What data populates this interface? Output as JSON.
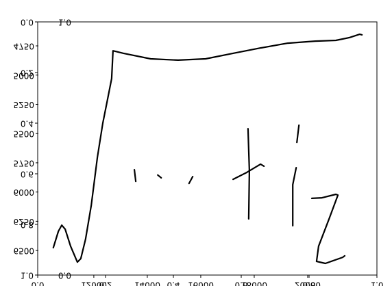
{
  "chart_data": [
    {
      "type": "line",
      "xlim": [
        0,
        1
      ],
      "xticks": [
        {
          "value": 0,
          "label": "0.0"
        },
        {
          "value": 0.2,
          "label": "0.2"
        },
        {
          "value": 0.4,
          "label": "0.4"
        },
        {
          "value": 0.6,
          "label": "0.6"
        },
        {
          "value": 0.8,
          "label": "0.8"
        },
        {
          "value": 1,
          "label": "1.0"
        }
      ],
      "ylim": [
        0,
        1
      ],
      "yticks": [
        {
          "value": 0,
          "label": "0.0"
        },
        {
          "value": 0.2,
          "label": "0.2"
        },
        {
          "value": 0.4,
          "label": "0.4"
        },
        {
          "value": 0.6,
          "label": "0.6"
        },
        {
          "value": 0.8,
          "label": "0.8"
        },
        {
          "value": 1,
          "label": "1.0"
        }
      ],
      "series": [
        {
          "color": "#000000",
          "x": [
            0.046,
            0.061,
            0.071,
            0.081,
            0.097,
            0.117,
            0.127,
            0.141,
            0.158,
            0.176,
            0.192,
            0.206,
            0.218,
            0.222,
            0.253,
            0.333,
            0.414,
            0.495,
            0.576,
            0.657,
            0.737,
            0.818,
            0.879,
            0.919,
            0.949,
            0.956,
            null,
            0.285,
            0.289,
            null,
            0.354,
            0.364,
            null,
            0.446,
            0.457,
            null,
            0.576,
            0.616,
            0.657,
            0.667,
            null,
            0.62,
            0.624,
            0.622,
            null,
            0.77,
            0.764,
            null,
            0.762,
            0.752,
            0.752,
            null,
            0.808,
            0.838,
            0.879,
            0.885,
            0.859,
            0.828,
            0.822,
            0.848,
            0.899,
            0.905
          ],
          "values": [
            0.892,
            0.827,
            0.803,
            0.819,
            0.886,
            0.949,
            0.935,
            0.859,
            0.724,
            0.535,
            0.4,
            0.305,
            0.224,
            0.114,
            0.124,
            0.146,
            0.151,
            0.146,
            0.124,
            0.103,
            0.084,
            0.076,
            0.073,
            0.062,
            0.049,
            0.051,
            null,
            0.584,
            0.63,
            null,
            0.605,
            0.616,
            null,
            0.638,
            0.611,
            null,
            0.622,
            0.595,
            0.562,
            0.57,
            null,
            0.422,
            0.589,
            0.778,
            null,
            0.408,
            0.476,
            null,
            0.576,
            0.643,
            0.805,
            null,
            0.697,
            0.695,
            0.681,
            0.684,
            0.778,
            0.886,
            0.946,
            0.954,
            0.93,
            0.924
          ]
        }
      ]
    },
    {
      "type": "frame",
      "xlim": [
        9900,
        22590
      ],
      "xticks": [
        12000,
        14000,
        16000,
        18000,
        20000
      ],
      "ylim": [
        4545,
        6710
      ],
      "yticks": [
        4750,
        5000,
        5250,
        5500,
        5750,
        6000,
        6250,
        6500
      ]
    },
    {
      "type": "frame",
      "ylim": [
        1,
        0
      ],
      "yticks": [
        {
          "value": 0,
          "label": "0.0"
        },
        {
          "value": 1,
          "label": "1.0"
        }
      ]
    }
  ]
}
